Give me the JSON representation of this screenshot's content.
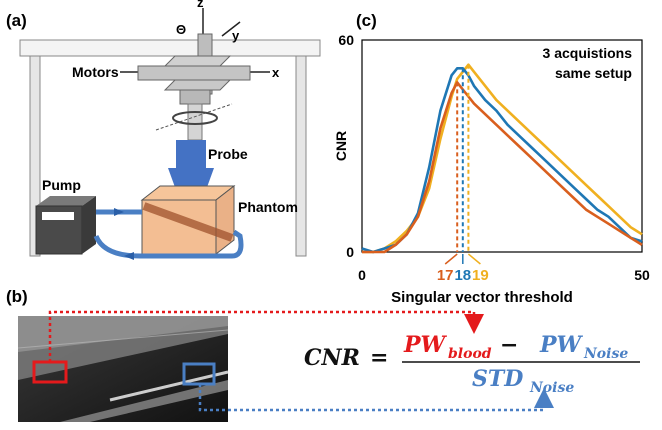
{
  "panels": {
    "a": "(a)",
    "b": "(b)",
    "c": "(c)"
  },
  "setup": {
    "axis_z": "z",
    "axis_y": "y",
    "axis_x": "x",
    "axis_theta": "Θ",
    "motors": "Motors",
    "probe": "Probe",
    "pump": "Pump",
    "phantom": "Phantom"
  },
  "colors": {
    "red": "#e41a1c",
    "blue": "#4a7fc4",
    "orange": "#d95f1e",
    "line_blue": "#1f77b4",
    "gold": "#f0b020",
    "probe_blue": "#4472c4"
  },
  "formula": {
    "lhs": "CNR",
    "equals": "=",
    "pw": "PW",
    "blood": "blood",
    "minus": "−",
    "noise": "Noise",
    "std": "STD"
  },
  "chart_data": {
    "type": "line",
    "ylabel": "CNR",
    "xlabel": "Singular vector threshold",
    "xlim": [
      0,
      50
    ],
    "ylim": [
      0,
      60
    ],
    "x_ticks": [
      "0",
      "50"
    ],
    "y_ticks": [
      "0",
      "60"
    ],
    "annotation": [
      "3 acquistions",
      "same setup"
    ],
    "thresholds": [
      {
        "label": "17",
        "x": 17,
        "color": "#d95f1e"
      },
      {
        "label": "18",
        "x": 18,
        "color": "#1f77b4"
      },
      {
        "label": "19",
        "x": 19,
        "color": "#f0b020"
      }
    ],
    "series": [
      {
        "color": "#f0b020",
        "x": [
          0,
          2,
          4,
          6,
          8,
          10,
          12,
          14,
          16,
          17,
          18,
          19,
          20,
          22,
          24,
          26,
          28,
          30,
          32,
          34,
          36,
          38,
          40,
          42,
          44,
          46,
          48,
          50
        ],
        "y": [
          0,
          0,
          1,
          3,
          6,
          10,
          18,
          32,
          44,
          49,
          51,
          53,
          51,
          47,
          43,
          40,
          37,
          34,
          31,
          28,
          25,
          22,
          19,
          16,
          13,
          10,
          7,
          5
        ]
      },
      {
        "color": "#1f77b4",
        "x": [
          0,
          2,
          4,
          6,
          8,
          10,
          12,
          14,
          16,
          17,
          18,
          19,
          20,
          22,
          24,
          26,
          28,
          30,
          32,
          34,
          36,
          38,
          40,
          42,
          44,
          46,
          48,
          50
        ],
        "y": [
          1,
          0,
          1,
          2,
          5,
          11,
          24,
          40,
          50,
          52,
          52,
          50,
          47,
          43,
          40,
          36,
          33,
          30,
          27,
          24,
          21,
          18,
          15,
          12,
          10,
          7,
          4,
          3
        ]
      },
      {
        "color": "#d95f1e",
        "x": [
          0,
          2,
          4,
          6,
          8,
          10,
          12,
          14,
          16,
          17,
          18,
          19,
          20,
          22,
          24,
          26,
          28,
          30,
          32,
          34,
          36,
          38,
          40,
          42,
          44,
          46,
          48,
          50
        ],
        "y": [
          0,
          0,
          0,
          2,
          5,
          10,
          20,
          35,
          45,
          48,
          46,
          44,
          42,
          39,
          36,
          33,
          30,
          27,
          24,
          21,
          18,
          15,
          12,
          10,
          8,
          6,
          4,
          2
        ]
      }
    ]
  }
}
